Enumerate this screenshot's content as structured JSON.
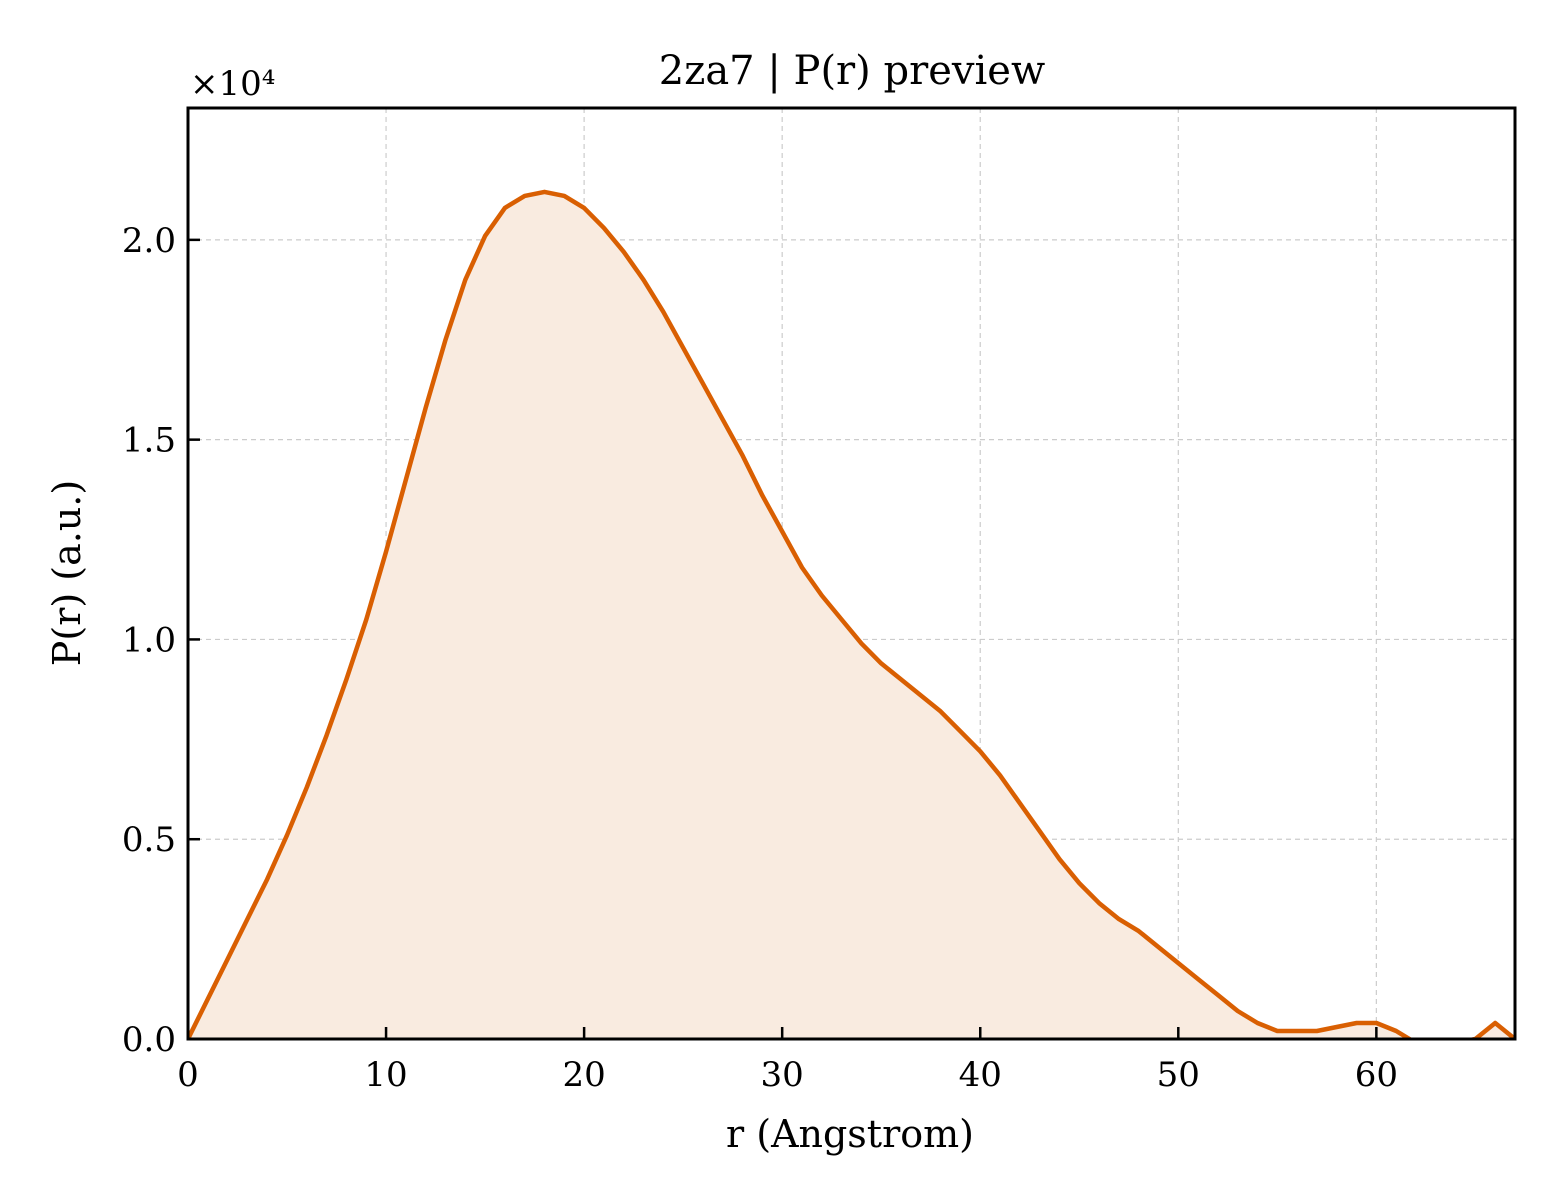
{
  "chart_data": {
    "type": "area",
    "title": "2za7 | P(r) preview",
    "xlabel": "r (Angstrom)",
    "ylabel": "P(r) (a.u.)",
    "y_multiplier_label": "×10⁴",
    "xlim": [
      0,
      67
    ],
    "ylim": [
      0,
      2.33
    ],
    "xticks": [
      0,
      10,
      20,
      30,
      40,
      50,
      60
    ],
    "yticks": [
      0.0,
      0.5,
      1.0,
      1.5,
      2.0
    ],
    "ytick_labels": [
      "0.0",
      "0.5",
      "1.0",
      "1.5",
      "2.0"
    ],
    "grid": true,
    "line_color": "#d95f02",
    "fill_color": "#f9ebe0",
    "series": [
      {
        "x": [
          0,
          1,
          2,
          3,
          4,
          5,
          6,
          7,
          8,
          9,
          10,
          11,
          12,
          13,
          14,
          15,
          16,
          17,
          18,
          19,
          20,
          21,
          22,
          23,
          24,
          25,
          26,
          27,
          28,
          29,
          30,
          31,
          32,
          33,
          34,
          35,
          36,
          37,
          38,
          39,
          40,
          41,
          42,
          43,
          44,
          45,
          46,
          47,
          48,
          49,
          50,
          51,
          52,
          53,
          54,
          55,
          56,
          57,
          58,
          59,
          60,
          61,
          62,
          63,
          64,
          65,
          66,
          67
        ],
        "y": [
          0.0,
          0.1,
          0.2,
          0.3,
          0.4,
          0.51,
          0.63,
          0.76,
          0.9,
          1.05,
          1.22,
          1.4,
          1.58,
          1.75,
          1.9,
          2.01,
          2.08,
          2.11,
          2.12,
          2.11,
          2.08,
          2.03,
          1.97,
          1.9,
          1.82,
          1.73,
          1.64,
          1.55,
          1.46,
          1.36,
          1.27,
          1.18,
          1.11,
          1.05,
          0.99,
          0.94,
          0.9,
          0.86,
          0.82,
          0.77,
          0.72,
          0.66,
          0.59,
          0.52,
          0.45,
          0.39,
          0.34,
          0.3,
          0.27,
          0.23,
          0.19,
          0.15,
          0.11,
          0.07,
          0.04,
          0.02,
          0.02,
          0.02,
          0.03,
          0.04,
          0.04,
          0.02,
          -0.01,
          -0.01,
          -0.01,
          0.0,
          0.04,
          0.0
        ]
      }
    ]
  }
}
